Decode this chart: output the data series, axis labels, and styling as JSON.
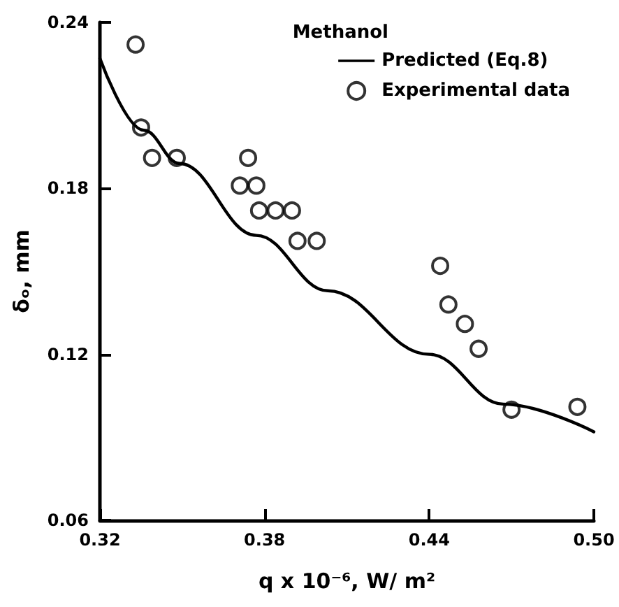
{
  "chart_data": {
    "type": "scatter",
    "legend_title": "Methanol",
    "xlabel": "q x 10⁻⁶, W/ m²",
    "ylabel": "δₒ, mm",
    "xlim": [
      0.32,
      0.5
    ],
    "xticks": [
      0.32,
      0.38,
      0.44,
      {
        "value": 0.5,
        "label": "0.50"
      }
    ],
    "ylim": [
      0.06,
      0.24
    ],
    "yticks": [
      0.06,
      0.12,
      0.18,
      0.24
    ],
    "grid": false,
    "legend": "top right",
    "series": [
      {
        "name": "Predicted (Eq.8)",
        "type": "line",
        "color": "#000000",
        "marker": "none",
        "line_style": "solid",
        "x": [
          0.32,
          0.336,
          0.349,
          0.377,
          0.403,
          0.44,
          0.467,
          0.5
        ],
        "values": [
          0.227,
          0.201,
          0.189,
          0.163,
          0.143,
          0.12,
          0.102,
          0.092
        ]
      },
      {
        "name": "Experimental data",
        "color": "#000000",
        "marker": "circle",
        "x": [
          0.333,
          0.335,
          0.339,
          0.348,
          0.374,
          0.371,
          0.377,
          0.378,
          0.384,
          0.39,
          0.392,
          0.399,
          0.444,
          0.447,
          0.453,
          0.458,
          0.47,
          0.494
        ],
        "values": [
          0.232,
          0.202,
          0.191,
          0.191,
          0.191,
          0.181,
          0.181,
          0.172,
          0.172,
          0.172,
          0.161,
          0.161,
          0.152,
          0.138,
          0.131,
          0.122,
          0.1,
          0.101
        ]
      }
    ]
  }
}
